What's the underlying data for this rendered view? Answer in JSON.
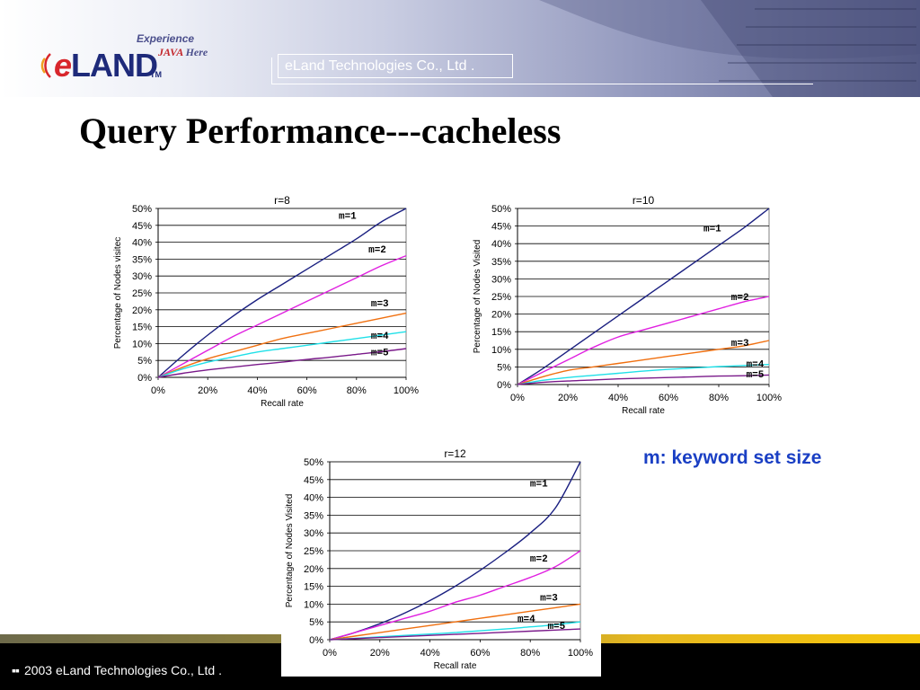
{
  "header": {
    "logo": {
      "experience": "Experience",
      "java": "JAVA",
      "here": "Here",
      "brand": "eLAND",
      "tm": "TM"
    },
    "company": "eLand Technologies Co., Ltd ."
  },
  "title": "Query Performance---cacheless",
  "legend_note": "m: keyword set size",
  "footer": {
    "text": "2003 eLand Technologies Co., Ltd ."
  },
  "colors": {
    "m1": "#1a1f80",
    "m2": "#e020e0",
    "m3": "#f07010",
    "m4": "#20e0e8",
    "m5": "#7a1a8a",
    "note": "#1a3fc4",
    "footer_bg": "#000000"
  },
  "chart_data": [
    {
      "type": "line",
      "title": "r=8",
      "xlabel": "Recall rate",
      "ylabel": "Percentage of Nodes visitec",
      "xlim": [
        0,
        100
      ],
      "ylim": [
        0,
        50
      ],
      "x_ticks": [
        "0%",
        "20%",
        "40%",
        "60%",
        "80%",
        "100%"
      ],
      "y_ticks": [
        "0%",
        "5%",
        "10%",
        "15%",
        "20%",
        "25%",
        "30%",
        "35%",
        "40%",
        "45%",
        "50%"
      ],
      "grid": "horizontal",
      "x": [
        0,
        10,
        20,
        30,
        40,
        50,
        60,
        70,
        80,
        90,
        100
      ],
      "series": [
        {
          "name": "m=1",
          "values": [
            0,
            6.5,
            12.5,
            18,
            23,
            27.5,
            32,
            36.5,
            41,
            46,
            50
          ]
        },
        {
          "name": "m=2",
          "values": [
            0,
            4,
            8,
            12,
            15.5,
            19,
            22.5,
            26,
            29.5,
            33,
            36
          ]
        },
        {
          "name": "m=3",
          "values": [
            0,
            3,
            5.5,
            7.5,
            9.5,
            11.5,
            13,
            14.5,
            16,
            17.5,
            19
          ]
        },
        {
          "name": "m=4",
          "values": [
            0,
            2.5,
            4.5,
            6,
            7.5,
            8.5,
            9.5,
            10.5,
            11.5,
            12.5,
            13.5
          ]
        },
        {
          "name": "m=5",
          "values": [
            0,
            1.2,
            2.2,
            3,
            3.8,
            4.5,
            5.3,
            6,
            6.8,
            7.6,
            8.5
          ]
        }
      ]
    },
    {
      "type": "line",
      "title": "r=10",
      "xlabel": "Recall rate",
      "ylabel": "Percentage of Nodes Visited",
      "xlim": [
        0,
        100
      ],
      "ylim": [
        0,
        50
      ],
      "x_ticks": [
        "0%",
        "20%",
        "40%",
        "60%",
        "80%",
        "100%"
      ],
      "y_ticks": [
        "0%",
        "5%",
        "10%",
        "15%",
        "20%",
        "25%",
        "30%",
        "35%",
        "40%",
        "45%",
        "50%"
      ],
      "grid": "horizontal",
      "x": [
        0,
        10,
        20,
        30,
        40,
        50,
        60,
        70,
        80,
        90,
        100
      ],
      "series": [
        {
          "name": "m=1",
          "values": [
            0,
            4.5,
            9.5,
            14.5,
            19.5,
            24.5,
            29.5,
            34.5,
            39.5,
            44.5,
            50
          ]
        },
        {
          "name": "m=2",
          "values": [
            0,
            3.5,
            7,
            10.5,
            13.5,
            15.5,
            17.5,
            19.5,
            21.5,
            23.5,
            25
          ]
        },
        {
          "name": "m=3",
          "values": [
            0,
            2.2,
            4,
            5,
            6,
            7,
            8,
            9,
            10,
            11,
            12.5
          ]
        },
        {
          "name": "m=4",
          "values": [
            0,
            1.2,
            2,
            2.6,
            3.2,
            3.8,
            4.3,
            4.7,
            5.1,
            5.4,
            5.7
          ]
        },
        {
          "name": "m=5",
          "values": [
            0,
            0.6,
            1,
            1.3,
            1.6,
            1.8,
            2,
            2.2,
            2.4,
            2.5,
            2.7
          ]
        }
      ]
    },
    {
      "type": "line",
      "title": "r=12",
      "xlabel": "Recall rate",
      "ylabel": "Percentage of  Nodes Visited",
      "xlim": [
        0,
        100
      ],
      "ylim": [
        0,
        50
      ],
      "x_ticks": [
        "0%",
        "20%",
        "40%",
        "60%",
        "80%",
        "100%"
      ],
      "y_ticks": [
        "0%",
        "5%",
        "10%",
        "15%",
        "20%",
        "25%",
        "30%",
        "35%",
        "40%",
        "45%",
        "50%"
      ],
      "grid": "horizontal",
      "x": [
        0,
        10,
        20,
        30,
        40,
        50,
        60,
        70,
        80,
        90,
        100
      ],
      "series": [
        {
          "name": "m=1",
          "values": [
            0,
            2,
            4.5,
            7.5,
            11,
            15,
            19.5,
            24.5,
            30,
            37,
            50
          ]
        },
        {
          "name": "m=2",
          "values": [
            0,
            2,
            4,
            6,
            8,
            10.5,
            12.5,
            15,
            17.5,
            20.5,
            25
          ]
        },
        {
          "name": "m=3",
          "values": [
            0,
            1,
            2,
            3,
            4,
            5,
            6,
            7,
            8,
            9,
            10
          ]
        },
        {
          "name": "m=4",
          "values": [
            0,
            0.4,
            0.8,
            1.2,
            1.6,
            2,
            2.5,
            3,
            3.6,
            4.2,
            5
          ]
        },
        {
          "name": "m=5",
          "values": [
            0,
            0.3,
            0.6,
            0.9,
            1.2,
            1.5,
            1.8,
            2.1,
            2.4,
            2.7,
            3
          ]
        }
      ]
    }
  ]
}
